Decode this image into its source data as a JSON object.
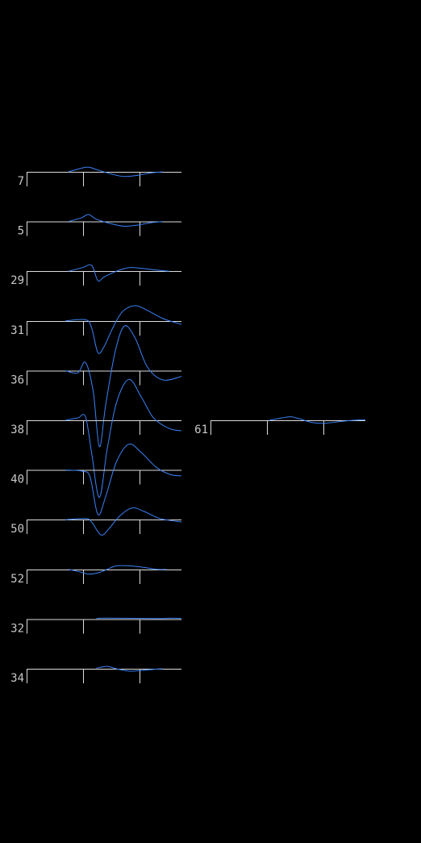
{
  "chart_data": {
    "type": "line",
    "description_free": true,
    "trace_color": "#3b82f6",
    "axis_color": "#dcdcdc",
    "label_color": "#c8c8c8",
    "background": "#000000",
    "channels": [
      {
        "name": "7",
        "column": 0,
        "row": 0,
        "x": [
          0.27,
          0.35,
          0.4,
          0.45,
          0.55,
          0.63,
          0.72,
          0.8,
          0.88
        ],
        "y": [
          0,
          0.3,
          0.4,
          0.2,
          -0.2,
          -0.4,
          -0.3,
          -0.1,
          0
        ]
      },
      {
        "name": "5",
        "column": 0,
        "row": 1,
        "x": [
          0.27,
          0.35,
          0.4,
          0.45,
          0.55,
          0.63,
          0.72,
          0.8,
          0.88
        ],
        "y": [
          0,
          0.3,
          0.6,
          0.2,
          -0.2,
          -0.4,
          -0.3,
          -0.1,
          0
        ]
      },
      {
        "name": "29",
        "column": 0,
        "row": 2,
        "x": [
          0.27,
          0.36,
          0.42,
          0.46,
          0.5,
          0.58,
          0.66,
          0.74,
          0.84,
          0.92
        ],
        "y": [
          0,
          0.3,
          0.5,
          -0.8,
          -0.5,
          0.0,
          0.3,
          0.25,
          0.1,
          0
        ]
      },
      {
        "name": "31",
        "column": 0,
        "row": 3,
        "x": [
          0.25,
          0.38,
          0.42,
          0.46,
          0.5,
          0.56,
          0.62,
          0.7,
          0.78,
          0.88,
          1.0
        ],
        "y": [
          0,
          0.1,
          -0.6,
          -2.7,
          -2.2,
          -0.5,
          0.8,
          1.3,
          0.9,
          0.2,
          -0.3
        ]
      },
      {
        "name": "36",
        "column": 0,
        "row": 4,
        "x": [
          0.25,
          0.33,
          0.38,
          0.43,
          0.47,
          0.51,
          0.57,
          0.63,
          0.7,
          0.78,
          0.88,
          1.0
        ],
        "y": [
          0,
          -0.2,
          0.7,
          -1.8,
          -6.5,
          -3.0,
          1.5,
          3.8,
          2.8,
          0.3,
          -0.8,
          -0.5
        ]
      },
      {
        "name": "38",
        "column": 0,
        "row": 5,
        "x": [
          0.25,
          0.33,
          0.38,
          0.42,
          0.47,
          0.52,
          0.58,
          0.66,
          0.74,
          0.82,
          0.92,
          1.0
        ],
        "y": [
          0,
          0.2,
          0.3,
          -2.8,
          -6.6,
          -2.5,
          1.5,
          3.5,
          2.0,
          0.2,
          -0.7,
          -0.9
        ]
      },
      {
        "name": "40",
        "column": 0,
        "row": 6,
        "x": [
          0.25,
          0.36,
          0.41,
          0.46,
          0.51,
          0.58,
          0.66,
          0.74,
          0.84,
          0.93,
          1.0
        ],
        "y": [
          0,
          -0.1,
          -0.6,
          -3.8,
          -2.3,
          0.7,
          2.2,
          1.5,
          0.2,
          -0.4,
          -0.5
        ]
      },
      {
        "name": "50",
        "column": 0,
        "row": 7,
        "x": [
          0.25,
          0.38,
          0.42,
          0.48,
          0.53,
          0.6,
          0.68,
          0.76,
          0.86,
          1.0
        ],
        "y": [
          0,
          0.1,
          -0.2,
          -1.3,
          -0.8,
          0.3,
          1.0,
          0.7,
          0.1,
          -0.2
        ]
      },
      {
        "name": "52",
        "column": 0,
        "row": 8,
        "x": [
          0.27,
          0.34,
          0.4,
          0.46,
          0.52,
          0.58,
          0.66,
          0.74,
          0.84,
          0.9
        ],
        "y": [
          0,
          -0.2,
          -0.4,
          -0.3,
          0.0,
          0.3,
          0.3,
          0.2,
          0.0,
          0
        ]
      },
      {
        "name": "32",
        "column": 0,
        "row": 9,
        "x": [
          0.45,
          0.52,
          0.85,
          0.95,
          1.0
        ],
        "y": [
          0.05,
          0.08,
          0.05,
          0.08,
          0.05
        ]
      },
      {
        "name": "34",
        "column": 0,
        "row": 10,
        "x": [
          0.45,
          0.52,
          0.58,
          0.66,
          0.74,
          0.82,
          0.88
        ],
        "y": [
          0.05,
          0.2,
          0.0,
          -0.2,
          -0.15,
          -0.05,
          0
        ]
      },
      {
        "name": "61",
        "column": 1,
        "row": 5,
        "x": [
          0.38,
          0.46,
          0.52,
          0.58,
          0.66,
          0.74,
          0.84,
          0.92,
          1.0
        ],
        "y": [
          0,
          0.2,
          0.3,
          0.1,
          -0.2,
          -0.25,
          -0.1,
          0,
          0.05
        ]
      }
    ]
  }
}
